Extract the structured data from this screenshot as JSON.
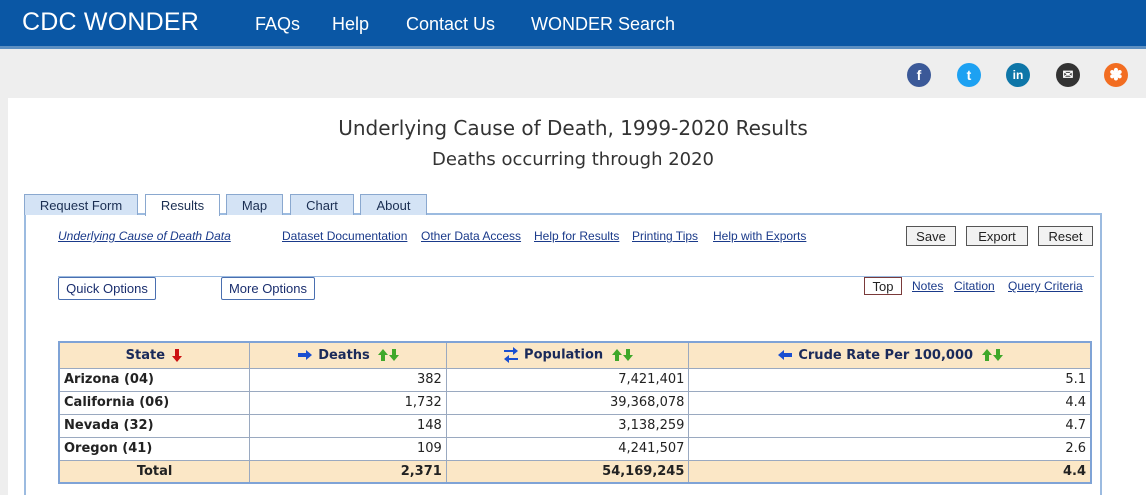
{
  "header": {
    "brand": "CDC WONDER",
    "nav": [
      "FAQs",
      "Help",
      "Contact Us",
      "WONDER Search"
    ]
  },
  "social": [
    {
      "icon": "facebook-icon",
      "glyph": "f",
      "color": "#3b5998"
    },
    {
      "icon": "twitter-icon",
      "glyph": "t",
      "color": "#1da1f2"
    },
    {
      "icon": "linkedin-icon",
      "glyph": "in",
      "color": "#0e76a8"
    },
    {
      "icon": "email-icon",
      "glyph": "✉",
      "color": "#333333"
    },
    {
      "icon": "syndication-icon",
      "glyph": "✽",
      "color": "#f26d21"
    }
  ],
  "page": {
    "title": "Underlying Cause of Death, 1999-2020 Results",
    "subtitle": "Deaths occurring through 2020"
  },
  "tabs": [
    "Request Form",
    "Results",
    "Map",
    "Chart",
    "About"
  ],
  "active_tab": "Results",
  "links": [
    "Underlying Cause of Death Data",
    "Dataset Documentation",
    "Other Data Access",
    "Help for Results",
    "Printing Tips",
    "Help with Exports"
  ],
  "actions": {
    "save": "Save",
    "export": "Export",
    "reset": "Reset"
  },
  "options": {
    "quick": "Quick Options",
    "more": "More Options"
  },
  "right_links": {
    "top": "Top",
    "notes": "Notes",
    "citation": "Citation",
    "query": "Query Criteria"
  },
  "table": {
    "headers": {
      "state": "State",
      "deaths": "Deaths",
      "population": "Population",
      "rate": "Crude Rate Per 100,000"
    },
    "rows": [
      {
        "state": "Arizona (04)",
        "deaths": "382",
        "population": "7,421,401",
        "rate": "5.1"
      },
      {
        "state": "California (06)",
        "deaths": "1,732",
        "population": "39,368,078",
        "rate": "4.4"
      },
      {
        "state": "Nevada (32)",
        "deaths": "148",
        "population": "3,138,259",
        "rate": "4.7"
      },
      {
        "state": "Oregon (41)",
        "deaths": "109",
        "population": "4,241,507",
        "rate": "2.6"
      }
    ],
    "total": {
      "label": "Total",
      "deaths": "2,371",
      "population": "54,169,245",
      "rate": "4.4"
    }
  },
  "colors": {
    "header_bg": "#0a57a5",
    "table_header_bg": "#fbe7c6",
    "sort_down_red": "#cc1111",
    "sort_green": "#3fa82a",
    "arrow_blue": "#1a4fd0"
  }
}
